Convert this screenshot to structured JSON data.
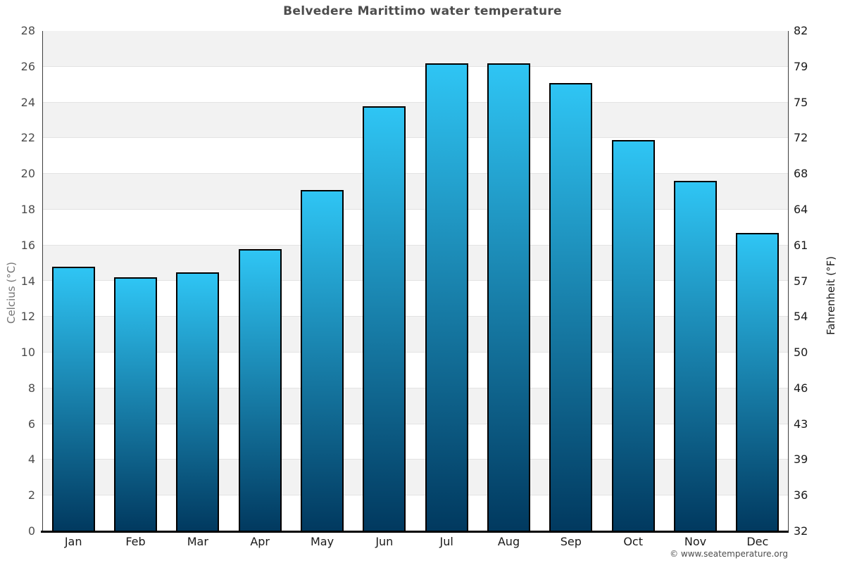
{
  "page": {
    "copyright": "© www.seatemperature.org"
  },
  "chart_data": {
    "type": "bar",
    "title": "Belvedere Marittimo water temperature",
    "categories": [
      "Jan",
      "Feb",
      "Mar",
      "Apr",
      "May",
      "Jun",
      "Jul",
      "Aug",
      "Sep",
      "Oct",
      "Nov",
      "Dec"
    ],
    "values": [
      14.8,
      14.2,
      14.5,
      15.8,
      19.1,
      23.8,
      26.2,
      26.2,
      25.1,
      21.9,
      19.6,
      16.7
    ],
    "xlabel": "",
    "ylabel_left": "Celcius (°C)",
    "ylabel_right": "Fahrenheit (°F)",
    "ylim": [
      0,
      28
    ],
    "yticks_celsius": [
      0,
      2,
      4,
      6,
      8,
      10,
      12,
      14,
      16,
      18,
      20,
      22,
      24,
      26,
      28
    ],
    "yticks_fahrenheit": [
      32,
      36,
      39,
      43,
      46,
      50,
      54,
      57,
      61,
      64,
      68,
      72,
      75,
      79,
      82
    ],
    "grid": "horizontal bands every 2 degrees, alternating gray/white",
    "legend": "none",
    "colors": {
      "bar_gradient_top": "#2fc5f4",
      "bar_gradient_bottom": "#01395f",
      "bar_border": "#000000",
      "band_gray": "#f2f2f2",
      "gridline": "#e3e3e3",
      "axis_side": "#3d3d3d",
      "axis_bottom": "#000000",
      "title_text": "#4d4d4d"
    }
  }
}
